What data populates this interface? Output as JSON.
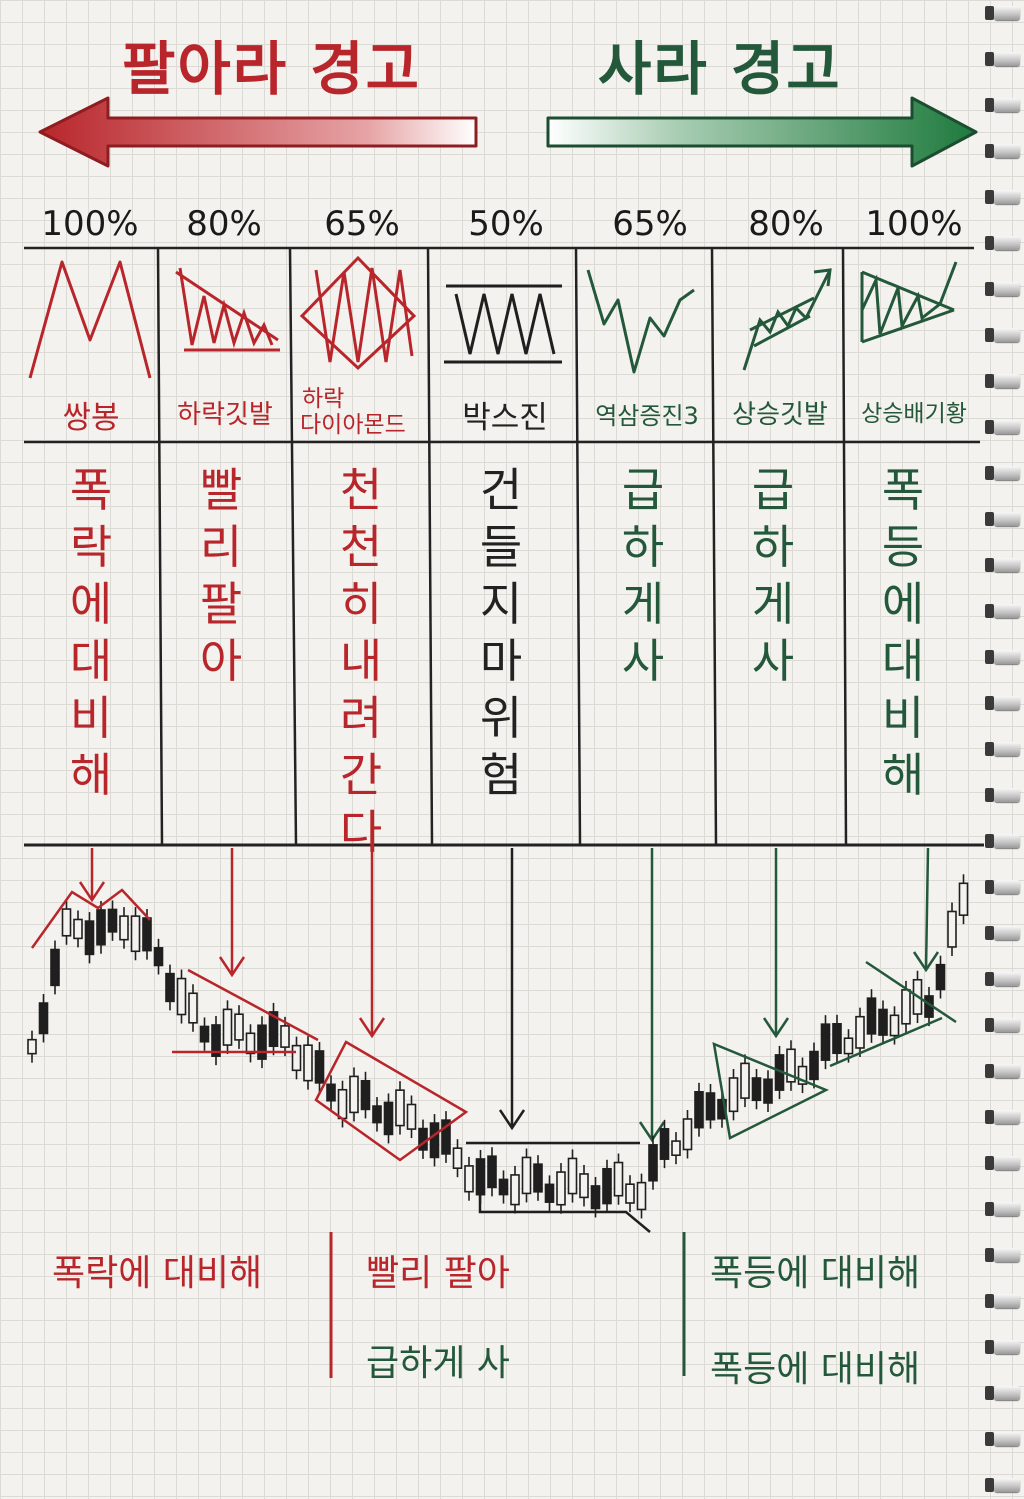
{
  "header": {
    "sell_title": "팔아라 경고",
    "buy_title": "사라 경고"
  },
  "colors": {
    "sell": "#b8262b",
    "buy": "#24583b",
    "ink": "#1f1f1f"
  },
  "patterns": [
    {
      "pct": "100%",
      "name": "쌍봉",
      "action": "폭락에대비해",
      "side": "sell",
      "icon": "double-top-icon"
    },
    {
      "pct": "80%",
      "name": "하락깃발",
      "action": "빨리 팔아",
      "side": "sell",
      "icon": "descending-flag-icon"
    },
    {
      "pct": "65%",
      "name_line1": "하락",
      "name_line2": "다이아몬드",
      "action": "천천히내려간다",
      "side": "sell",
      "icon": "diamond-icon"
    },
    {
      "pct": "50%",
      "name": "박스진",
      "action": "건들지마위험",
      "side": "neutral",
      "icon": "box-range-icon"
    },
    {
      "pct": "65%",
      "name": "역삼증진3",
      "action": "급하게사",
      "side": "buy",
      "icon": "inverse-head-shoulders-icon"
    },
    {
      "pct": "80%",
      "name": "상승깃발",
      "action": "급하게사",
      "side": "buy",
      "icon": "ascending-flag-icon"
    },
    {
      "pct": "100%",
      "name": "상승배기황",
      "action": "폭등에대비해",
      "side": "buy",
      "icon": "ascending-wedge-icon"
    }
  ],
  "summary": {
    "left": "폭락에 대비해",
    "mid_top": "빨리 팔아",
    "mid_bottom": "급하게 사",
    "right_top": "폭등에 대비해",
    "right_bottom": "폭등에 대비해"
  }
}
